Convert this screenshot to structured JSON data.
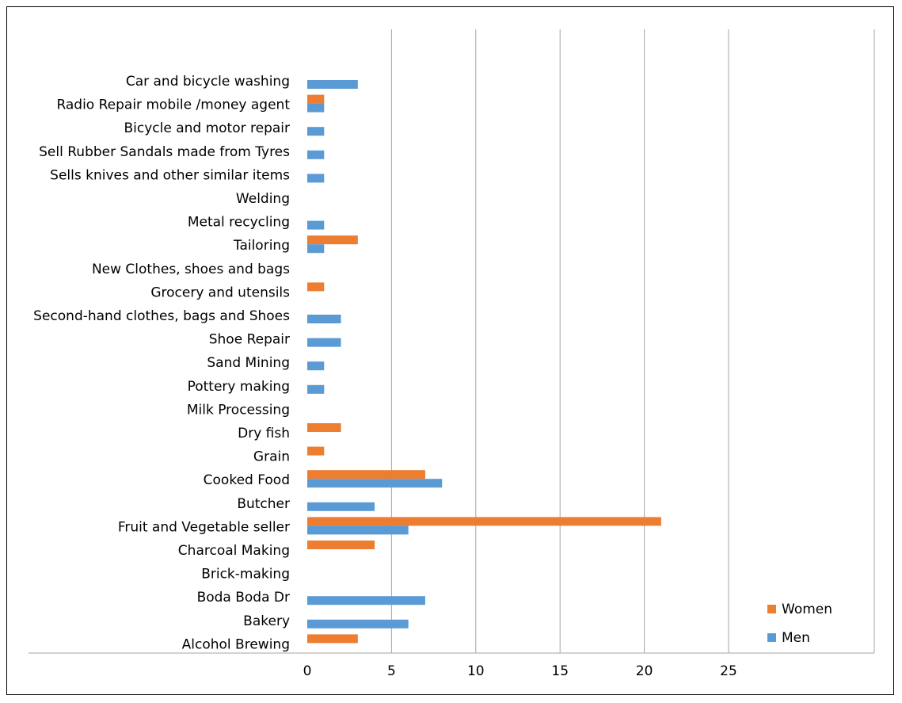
{
  "chart_data": {
    "type": "bar",
    "orientation": "horizontal",
    "categories": [
      "Car and bicycle washing",
      "Radio Repair mobile /money agent",
      "Bicycle and motor repair",
      "Sell Rubber Sandals made from Tyres",
      "Sells knives and other similar items",
      "Welding",
      "Metal recycling",
      "Tailoring",
      "New Clothes, shoes and bags",
      "Grocery and utensils",
      "Second-hand clothes, bags and Shoes",
      "Shoe Repair",
      "Sand Mining",
      "Pottery making",
      "Milk Processing",
      "Dry fish",
      "Grain",
      "Cooked Food",
      "Butcher",
      "Fruit and Vegetable seller",
      "Charcoal Making",
      "Brick-making",
      "Boda Boda Dr",
      "Bakery",
      "Alcohol Brewing"
    ],
    "series": [
      {
        "name": "Women",
        "color": "#ED7D31",
        "values": [
          0,
          1,
          0,
          0,
          0,
          0,
          0,
          3,
          0,
          1,
          0,
          0,
          0,
          0,
          0,
          2,
          1,
          7,
          0,
          21,
          4,
          0,
          0,
          0,
          3
        ]
      },
      {
        "name": "Men",
        "color": "#5B9BD5",
        "values": [
          3,
          1,
          1,
          1,
          1,
          0,
          1,
          1,
          0,
          0,
          2,
          2,
          1,
          1,
          0,
          0,
          0,
          8,
          4,
          6,
          0,
          0,
          7,
          6,
          0
        ]
      }
    ],
    "xticks": [
      "0",
      "5",
      "10",
      "15",
      "20",
      "25"
    ],
    "xlim": [
      0,
      25
    ],
    "grid": "vertical",
    "legend_position": "bottom-right",
    "title": "",
    "xlabel": "",
    "ylabel": ""
  }
}
